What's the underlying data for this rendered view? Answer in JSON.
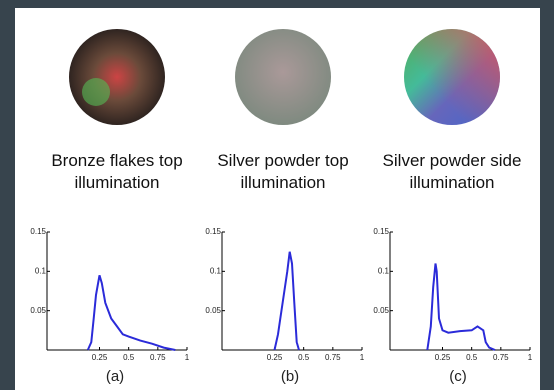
{
  "chart_data": [
    {
      "type": "line",
      "title": "Bronze flakes top illumination",
      "caption": "(a)",
      "color": "#2b2bd9",
      "x": [
        0.15,
        0.18,
        0.2,
        0.22,
        0.25,
        0.27,
        0.3,
        0.35,
        0.4,
        0.45,
        0.5,
        0.6,
        0.7,
        0.8,
        0.9
      ],
      "values": [
        0,
        0.01,
        0.04,
        0.07,
        0.095,
        0.085,
        0.06,
        0.04,
        0.03,
        0.02,
        0.017,
        0.012,
        0.008,
        0.003,
        0
      ],
      "xlim": [
        -0.2,
        1
      ],
      "ylim": [
        0,
        0.15
      ],
      "xticks": [
        0.25,
        0.5,
        0.75,
        1
      ],
      "yticks": [
        0.05,
        0.1,
        0.15
      ]
    },
    {
      "type": "line",
      "title": "Silver powder top illumination",
      "caption": "(b)",
      "color": "#2b2bd9",
      "x": [
        0.25,
        0.28,
        0.3,
        0.33,
        0.36,
        0.38,
        0.4,
        0.42,
        0.44,
        0.46
      ],
      "values": [
        0,
        0.02,
        0.04,
        0.07,
        0.1,
        0.125,
        0.11,
        0.06,
        0.01,
        0
      ],
      "xlim": [
        -0.2,
        1
      ],
      "ylim": [
        0,
        0.15
      ],
      "xticks": [
        0.25,
        0.5,
        0.75,
        1
      ],
      "yticks": [
        0.05,
        0.1,
        0.15
      ]
    },
    {
      "type": "line",
      "title": "Silver powder side illumination",
      "caption": "(c)",
      "color": "#2b2bd9",
      "x": [
        0.12,
        0.15,
        0.17,
        0.19,
        0.2,
        0.22,
        0.25,
        0.3,
        0.4,
        0.5,
        0.55,
        0.6,
        0.62,
        0.65,
        0.7
      ],
      "values": [
        0,
        0.03,
        0.08,
        0.11,
        0.1,
        0.04,
        0.025,
        0.022,
        0.024,
        0.025,
        0.03,
        0.025,
        0.01,
        0.003,
        0
      ],
      "xlim": [
        -0.2,
        1
      ],
      "ylim": [
        0,
        0.15
      ],
      "xticks": [
        0.25,
        0.5,
        0.75,
        1
      ],
      "yticks": [
        0.05,
        0.1,
        0.15
      ]
    }
  ]
}
